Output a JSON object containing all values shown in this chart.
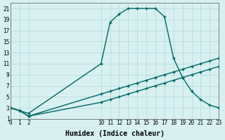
{
  "title": "",
  "xlabel": "Humidex (Indice chaleur)",
  "ylabel": "",
  "bg_color": "#d8f0f0",
  "grid_color": "#b0d8d8",
  "line_color": "#006666",
  "xlim": [
    0,
    23
  ],
  "ylim": [
    1,
    22
  ],
  "xticks": [
    0,
    1,
    2,
    10,
    11,
    12,
    13,
    14,
    15,
    16,
    17,
    18,
    19,
    20,
    21,
    22,
    23
  ],
  "yticks": [
    1,
    3,
    5,
    7,
    9,
    11,
    13,
    15,
    17,
    19,
    21
  ],
  "curve1_x": [
    0,
    1,
    2,
    10,
    11,
    12,
    13,
    14,
    15,
    16,
    17,
    18,
    19,
    20,
    21,
    22,
    23
  ],
  "curve1_y": [
    3,
    2.5,
    2,
    11,
    18.5,
    20,
    21,
    21,
    21,
    21,
    19.5,
    12,
    8.5,
    6,
    4.5,
    3.5,
    3.0
  ],
  "curve2_x": [
    0,
    1,
    2,
    10,
    11,
    12,
    13,
    14,
    15,
    16,
    17,
    18,
    19,
    20,
    21,
    22,
    23
  ],
  "curve2_y": [
    3,
    2.5,
    1.5,
    5.5,
    6.0,
    6.5,
    7.0,
    7.5,
    8.0,
    8.5,
    9.0,
    9.5,
    10.0,
    10.5,
    11.0,
    11.5,
    12.0
  ],
  "curve3_x": [
    0,
    1,
    2,
    10,
    11,
    12,
    13,
    14,
    15,
    16,
    17,
    18,
    19,
    20,
    21,
    22,
    23
  ],
  "curve3_y": [
    3,
    2.5,
    1.5,
    4.0,
    4.5,
    5.0,
    5.5,
    6.0,
    6.5,
    7.0,
    7.5,
    8.0,
    8.5,
    9.0,
    9.5,
    10.0,
    10.5
  ]
}
